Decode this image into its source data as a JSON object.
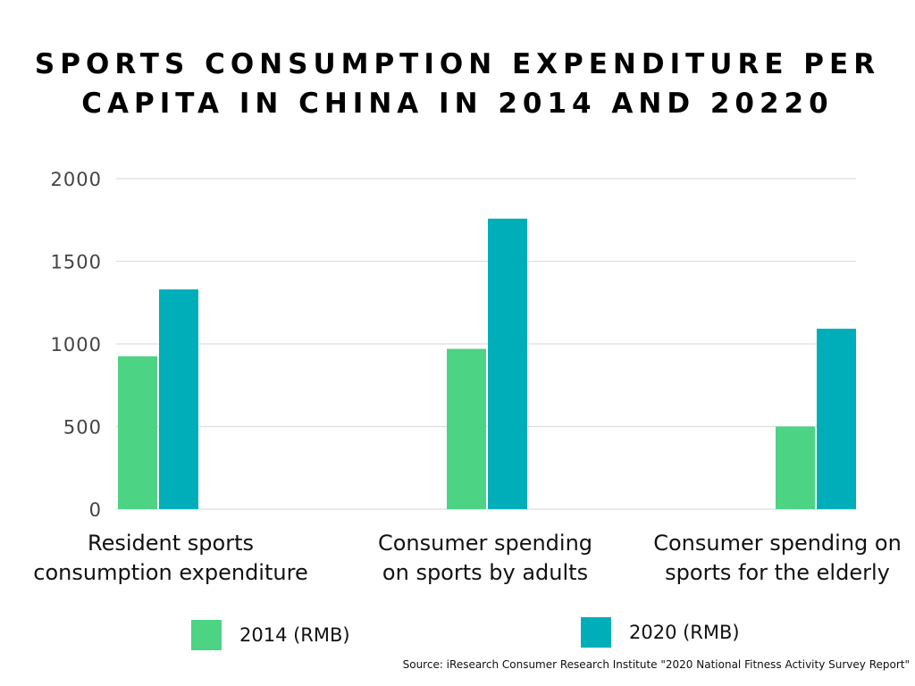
{
  "title_lines": [
    "SPORTS CONSUMPTION EXPENDITURE PER",
    "CAPITA IN CHINA IN 2014 AND 20220"
  ],
  "source": "Source: iResearch Consumer Research Institute \"2020 National Fitness Activity Survey Report\"",
  "colors": {
    "series_2014": "#4cd484",
    "series_2020": "#00aeb9",
    "grid": "#dddddd",
    "axis_text": "#444444"
  },
  "chart_data": {
    "type": "bar",
    "title": "SPORTS CONSUMPTION EXPENDITURE PER CAPITA IN CHINA IN 2014 AND 20220",
    "categories_lines": [
      [
        "Resident sports",
        "consumption expenditure"
      ],
      [
        "Consumer spending",
        "on sports by adults"
      ],
      [
        "Consumer spending on",
        "sports for the elderly"
      ]
    ],
    "categories": [
      "Resident sports consumption expenditure",
      "Consumer spending on sports by adults",
      "Consumer spending on sports for the elderly"
    ],
    "series": [
      {
        "name": "2014 (RMB)",
        "values": [
          925,
          970,
          500
        ]
      },
      {
        "name": "2020 (RMB)",
        "values": [
          1330,
          1758,
          1092
        ]
      }
    ],
    "y_ticks": [
      "0",
      "500",
      "1000",
      "1500",
      "2000"
    ],
    "ylim": [
      0,
      2000
    ],
    "grid": true,
    "legend_position": "bottom"
  }
}
